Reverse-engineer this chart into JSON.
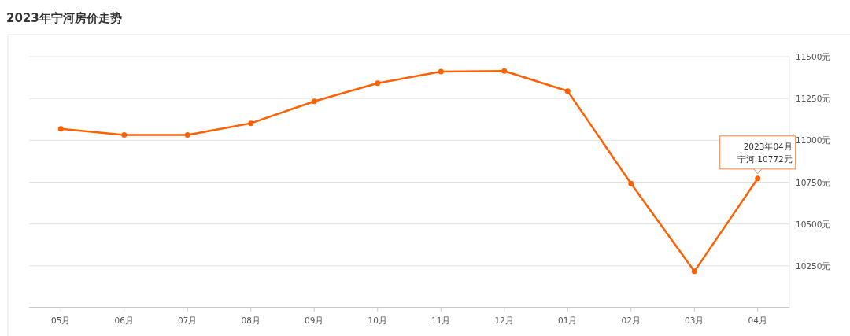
{
  "chart_data": {
    "type": "line",
    "title": "2023年宁河房价走势",
    "categories": [
      "05月",
      "06月",
      "07月",
      "08月",
      "09月",
      "10月",
      "11月",
      "12月",
      "01月",
      "02月",
      "03月",
      "04月"
    ],
    "series": [
      {
        "color": "#ff6000",
        "values": [
          11069,
          11032,
          11032,
          11102,
          11233,
          11341,
          11411,
          11414,
          11294,
          10742,
          10217,
          10772
        ]
      }
    ],
    "ylim": [
      10000,
      11500
    ],
    "yticks": [
      {
        "value": 10000,
        "label": null
      },
      {
        "value": 10250,
        "label": "10250元"
      },
      {
        "value": 10500,
        "label": "10500元"
      },
      {
        "value": 10750,
        "label": "10750元"
      },
      {
        "value": 11000,
        "label": "11000元"
      },
      {
        "value": 11250,
        "label": "11250元"
      },
      {
        "value": 11500,
        "label": "11500元"
      }
    ],
    "grid": "y",
    "marker": "circle",
    "line_style": "solid",
    "annotations": [
      "2023年04月",
      {
        "text": "宁河:10772元",
        "x": "04月",
        "y": 10772
      }
    ]
  }
}
